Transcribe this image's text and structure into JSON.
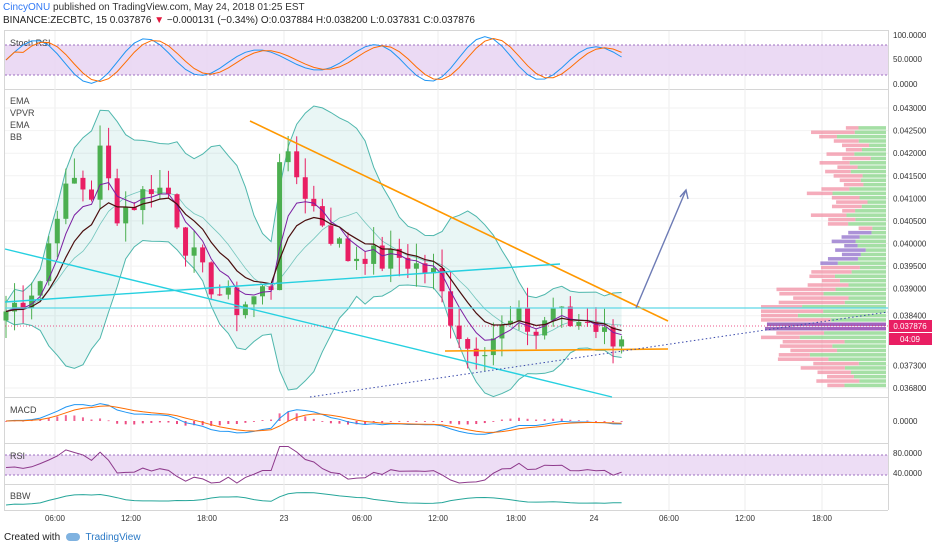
{
  "header": {
    "author": "CincyONU",
    "published_text": "published on TradingView.com, May 24, 2018 01:25 EST",
    "symbol": "BINANCE:ZECBTC, 15",
    "last": "0.037876",
    "change": "−0.000131 (−0.34%)",
    "open": "O:0.037884",
    "high": "H:0.038200",
    "low": "L:0.037831",
    "close": "C:0.037876"
  },
  "footer": {
    "created_with": "Created with",
    "brand": "TradingView"
  },
  "panes": {
    "stoch": {
      "label": "Stoch RSI",
      "ticks": [
        "100.0000",
        "50.0000",
        "0.0000"
      ]
    },
    "price": {
      "indicators": [
        "EMA",
        "VPVR",
        "EMA",
        "BB"
      ],
      "ticks": [
        "0.043000",
        "0.042500",
        "0.042000",
        "0.041500",
        "0.041000",
        "0.040500",
        "0.040000",
        "0.039500",
        "0.039000",
        "0.038400",
        "0.037300",
        "0.036800"
      ],
      "price_badge": "0.037876",
      "countdown_badge": "04:09"
    },
    "macd": {
      "label": "MACD",
      "ticks": [
        "0.0000"
      ]
    },
    "rsi": {
      "label": "RSI",
      "ticks": [
        "80.0000",
        "40.0000"
      ]
    },
    "bbw": {
      "label": "BBW"
    }
  },
  "colors": {
    "up": "#4caf50",
    "down": "#e91e63",
    "bb": "#26a69a",
    "ema_fast": "#7b1fa2",
    "ema_slow": "#4a0e0e",
    "trend_orange": "#ff9800",
    "trend_cyan": "#26d0e0",
    "projection": "#6d7bb5",
    "stoch_band": "#e1bee7"
  },
  "chart_data": {
    "type": "candlestick",
    "symbol": "BINANCE:ZECBTC",
    "interval": "15",
    "x_ticks": [
      "06:00",
      "12:00",
      "18:00",
      "23",
      "06:00",
      "12:00",
      "18:00",
      "24",
      "06:00",
      "12:00",
      "18:00"
    ],
    "y_range": [
      0.0366,
      0.0434
    ],
    "ohlc_last": {
      "open": 0.037884,
      "high": 0.0382,
      "low": 0.037831,
      "close": 0.037876,
      "change": -0.000131,
      "change_pct": -0.34
    },
    "price_path": [
      [
        0,
        0.0385
      ],
      [
        2,
        0.0388
      ],
      [
        4,
        0.0392
      ],
      [
        6,
        0.0408
      ],
      [
        8,
        0.0414
      ],
      [
        10,
        0.0411
      ],
      [
        11,
        0.042
      ],
      [
        13,
        0.0407
      ],
      [
        15,
        0.0409
      ],
      [
        17,
        0.0413
      ],
      [
        19,
        0.0411
      ],
      [
        21,
        0.04
      ],
      [
        23,
        0.0393
      ],
      [
        25,
        0.0389
      ],
      [
        27,
        0.0386
      ],
      [
        29,
        0.0388
      ],
      [
        31,
        0.0391
      ],
      [
        32,
        0.042
      ],
      [
        34,
        0.0415
      ],
      [
        36,
        0.0408
      ],
      [
        38,
        0.0402
      ],
      [
        40,
        0.0397
      ],
      [
        42,
        0.0398
      ],
      [
        44,
        0.0396
      ],
      [
        46,
        0.0397
      ],
      [
        48,
        0.0395
      ],
      [
        50,
        0.0393
      ],
      [
        52,
        0.0384
      ],
      [
        54,
        0.0377
      ],
      [
        56,
        0.0378
      ],
      [
        58,
        0.0381
      ],
      [
        60,
        0.0383
      ],
      [
        62,
        0.038
      ],
      [
        64,
        0.0386
      ],
      [
        66,
        0.0382
      ],
      [
        68,
        0.0384
      ],
      [
        70,
        0.038
      ],
      [
        72,
        0.03788
      ]
    ],
    "volume_profile_range": [
      0.0368,
      0.0426
    ],
    "volume_poc": 0.0381
  }
}
